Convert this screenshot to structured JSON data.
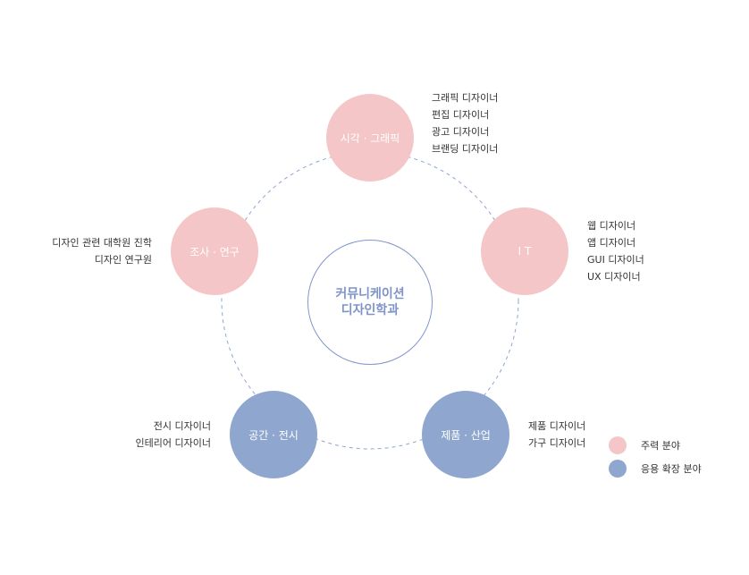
{
  "center": {
    "line1": "커뮤니케이션",
    "line2": "디자인학과"
  },
  "nodes": [
    {
      "label": "시각 · 그래픽",
      "type": "main",
      "jobs": [
        "그래픽 디자이너",
        "편집 디자이너",
        "광고 디자이너",
        "브랜딩 디자이너"
      ]
    },
    {
      "label": "I T",
      "type": "main",
      "jobs": [
        "웹 디자이너",
        "앱 디자이너",
        "GUI 디자이너",
        "UX 디자이너"
      ]
    },
    {
      "label": "제품 · 산업",
      "type": "extended",
      "jobs": [
        "제품 디자이너",
        "가구 디자이너"
      ]
    },
    {
      "label": "공간 · 전시",
      "type": "extended",
      "jobs": [
        "전시 디자이너",
        "인테리어 디자이너"
      ]
    },
    {
      "label": "조사 · 연구",
      "type": "main",
      "jobs": [
        "디자인 관련 대학원 진학",
        "디자인 연구원"
      ]
    }
  ],
  "legend": [
    {
      "label": "주력 분야",
      "color": "#f5c6c7"
    },
    {
      "label": "응용 확장 분야",
      "color": "#8fa6cf"
    }
  ],
  "colors": {
    "main": "#f5c6c7",
    "extended": "#8fa6cf",
    "center": "#8096cc"
  }
}
